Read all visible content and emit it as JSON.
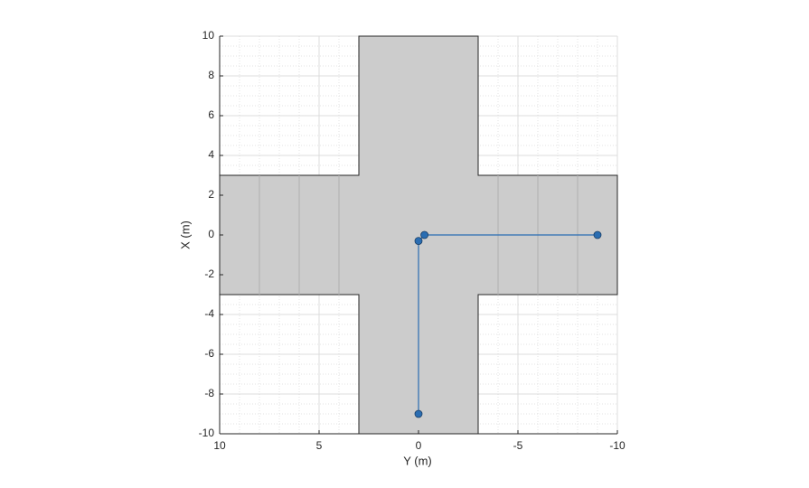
{
  "chart_data": {
    "type": "line",
    "xlabel": "Y (m)",
    "ylabel": "X (m)",
    "xlim": [
      10,
      -10
    ],
    "xticks": [
      10,
      5,
      0,
      -5,
      -10
    ],
    "ylim": [
      -10,
      10
    ],
    "yticks": [
      -10,
      -8,
      -6,
      -4,
      -2,
      0,
      2,
      4,
      6,
      8,
      10
    ],
    "grid": true,
    "minor_grid": true,
    "road_color": "#cccccc",
    "road_outline": {
      "x": [
        10,
        3,
        3,
        -3,
        -3,
        -10,
        -10,
        -3,
        -3,
        3,
        3,
        10
      ],
      "values": [
        3,
        3,
        10,
        10,
        3,
        3,
        -3,
        -3,
        -10,
        -10,
        -3,
        -3
      ]
    },
    "lane_lines": {
      "x": [
        8,
        6,
        4,
        -4,
        -6,
        -8
      ],
      "ylim": [
        -3,
        3
      ]
    },
    "x": [
      0,
      0,
      -0.3,
      -9
    ],
    "values": [
      -9,
      -0.3,
      0,
      0
    ],
    "color": "#2a6db2"
  }
}
